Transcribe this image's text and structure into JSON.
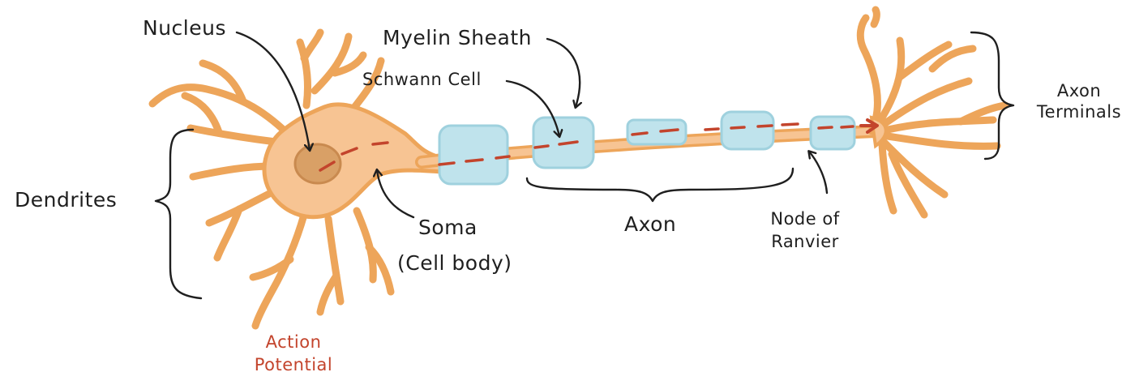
{
  "labels": {
    "nucleus": "Nucleus",
    "myelin_sheath": "Myelin Sheath",
    "schwann_cell": "Schwann Cell",
    "dendrites": "Dendrites",
    "soma": "Soma",
    "cell_body": "(Cell body)",
    "axon": "Axon",
    "node_of_ranvier_line1": "Node of",
    "node_of_ranvier_line2": "Ranvier",
    "axon_terminals_line1": "Axon",
    "axon_terminals_line2": "Terminals",
    "action_potential_line1": "Action",
    "action_potential_line2": "Potential"
  },
  "colors": {
    "neuron_fill": "#f7c493",
    "neuron_stroke": "#eda55a",
    "nucleus_fill": "#d9a066",
    "schwann_fill": "#bfe3ec",
    "schwann_stroke": "#9fd1de",
    "signal": "#c3442c",
    "ink": "#1f1f1f"
  }
}
